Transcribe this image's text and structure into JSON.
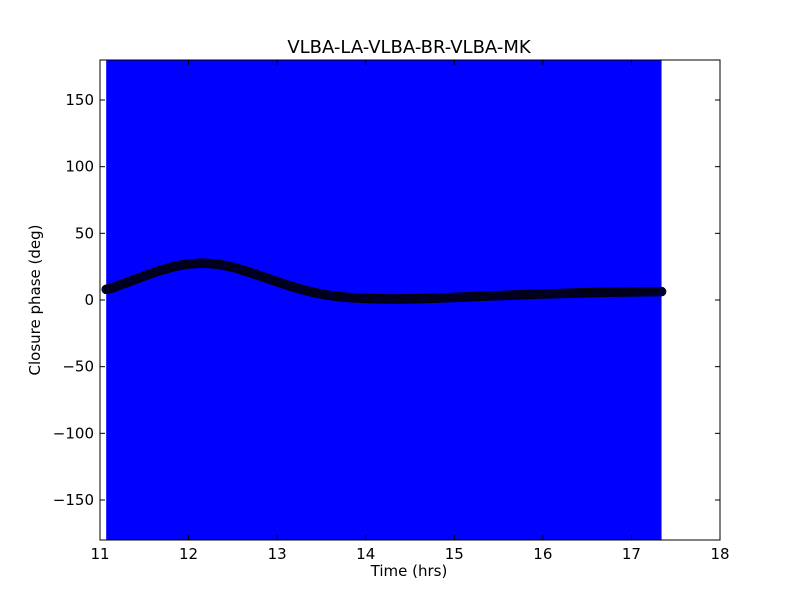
{
  "chart_data": {
    "type": "scatter",
    "title": "VLBA-LA-VLBA-BR-VLBA-MK",
    "xlabel": "Time (hrs)",
    "ylabel": "Closure phase (deg)",
    "xlim": [
      11,
      18
    ],
    "ylim": [
      -180,
      180
    ],
    "xticks": [
      11,
      12,
      13,
      14,
      15,
      16,
      17,
      18
    ],
    "yticks": [
      -150,
      -100,
      -50,
      0,
      50,
      100,
      150
    ],
    "grid": false,
    "legend": "none",
    "colors": {
      "error_fill": "#0000ff",
      "marker": "#000033",
      "axes": "#000000",
      "background": "#ffffff"
    },
    "series": [
      {
        "marker": "circle",
        "x": [
          11.07,
          11.3,
          11.5,
          11.7,
          11.9,
          12.1,
          12.3,
          12.5,
          12.7,
          12.9,
          13.1,
          13.3,
          13.5,
          13.7,
          13.9,
          14.1,
          14.3,
          14.5,
          14.7,
          14.9,
          15.1,
          15.3,
          15.5,
          15.7,
          15.9,
          16.1,
          16.3,
          16.5,
          16.7,
          16.9,
          17.1,
          17.34
        ],
        "y": [
          8,
          13,
          18,
          22.5,
          26,
          27.5,
          27,
          24.5,
          20.5,
          16,
          11.5,
          7.5,
          4.5,
          2.5,
          1.5,
          1,
          0.8,
          0.9,
          1.2,
          1.7,
          2.2,
          2.8,
          3.3,
          3.8,
          4.3,
          4.7,
          5.1,
          5.5,
          5.8,
          6,
          6.2,
          6.3
        ],
        "y_error_band": [
          -180,
          180
        ]
      }
    ]
  }
}
